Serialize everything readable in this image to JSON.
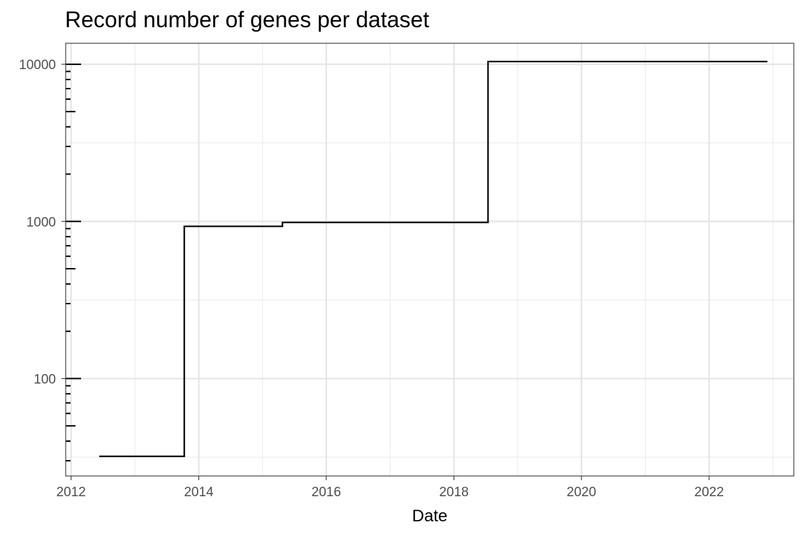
{
  "chart_data": {
    "type": "line",
    "style": "step",
    "title": "Record number of genes per dataset",
    "xlabel": "Date",
    "ylabel": "",
    "x_type": "date",
    "y_scale": "log10",
    "xlim": [
      "2011-12-01",
      "2023-05-01"
    ],
    "ylim": [
      24,
      13600
    ],
    "x_ticks": [
      "2012-01-01",
      "2014-01-01",
      "2016-01-01",
      "2018-01-01",
      "2020-01-01",
      "2022-01-01"
    ],
    "x_tick_labels": [
      "2012",
      "2014",
      "2016",
      "2018",
      "2020",
      "2022"
    ],
    "y_ticks": [
      100,
      1000,
      10000
    ],
    "y_tick_labels": [
      "100",
      "1000",
      "10000"
    ],
    "y_rug_values": [
      30,
      40,
      50,
      60,
      70,
      80,
      90,
      100,
      200,
      300,
      400,
      500,
      600,
      700,
      800,
      900,
      1000,
      2000,
      3000,
      4000,
      5000,
      6000,
      7000,
      8000,
      9000,
      10000
    ],
    "grid": true,
    "legend": "none",
    "series": [
      {
        "color": "#000000",
        "points": [
          {
            "x": "2012-06-10",
            "y": 32
          },
          {
            "x": "2013-10-10",
            "y": 930
          },
          {
            "x": "2015-04-25",
            "y": 985
          },
          {
            "x": "2018-07-15",
            "y": 10400
          },
          {
            "x": "2022-12-01",
            "y": 10400
          }
        ]
      }
    ]
  }
}
